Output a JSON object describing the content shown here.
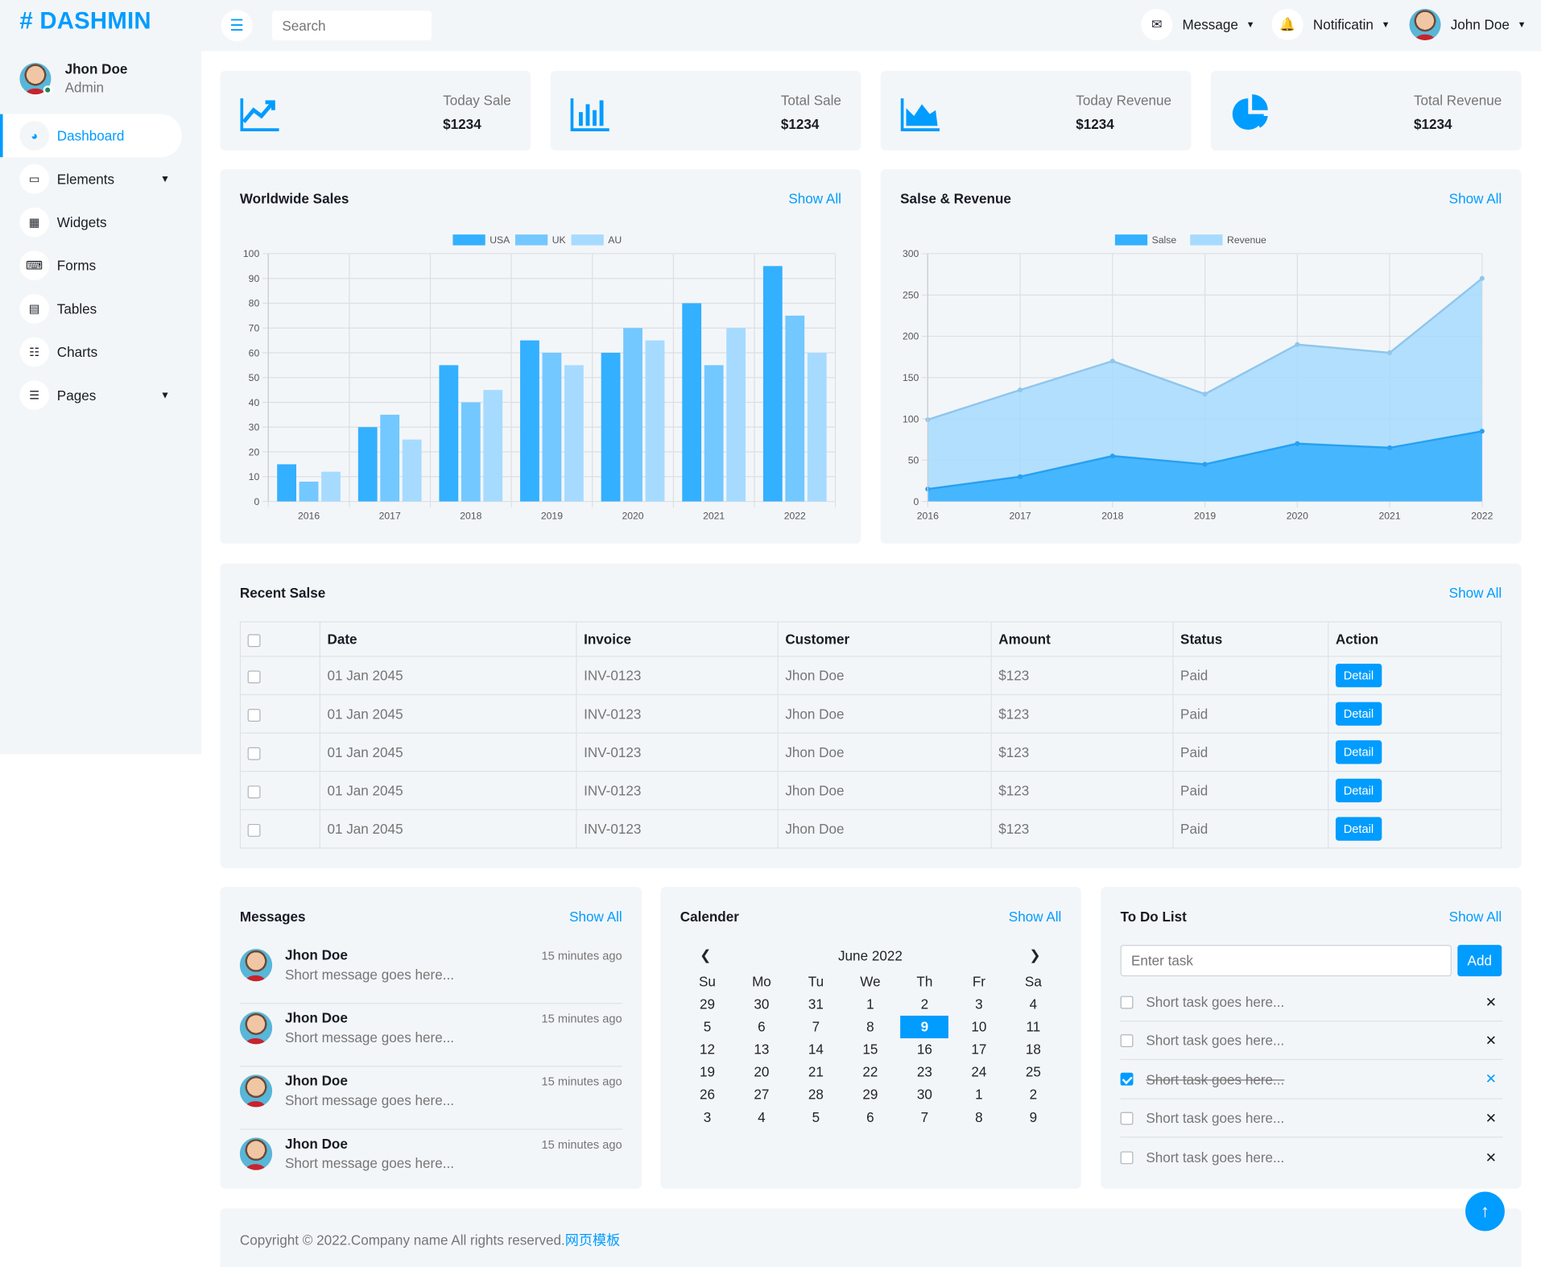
{
  "brand": "DASHMIN",
  "sidebar": {
    "user": {
      "name": "Jhon Doe",
      "role": "Admin"
    },
    "items": [
      {
        "label": "Dashboard",
        "icon": "gauge-icon",
        "active": true
      },
      {
        "label": "Elements",
        "icon": "laptop-icon",
        "has_dropdown": true
      },
      {
        "label": "Widgets",
        "icon": "grid-icon"
      },
      {
        "label": "Forms",
        "icon": "keyboard-icon"
      },
      {
        "label": "Tables",
        "icon": "table-icon"
      },
      {
        "label": "Charts",
        "icon": "chart-icon"
      },
      {
        "label": "Pages",
        "icon": "file-icon",
        "has_dropdown": true
      }
    ]
  },
  "topbar": {
    "search_placeholder": "Search",
    "message_label": "Message",
    "notification_label": "Notificatin",
    "user_label": "John Doe"
  },
  "stats": [
    {
      "label": "Today Sale",
      "value": "$1234",
      "icon": "trend-up-icon"
    },
    {
      "label": "Total Sale",
      "value": "$1234",
      "icon": "bar-chart-icon"
    },
    {
      "label": "Today Revenue",
      "value": "$1234",
      "icon": "area-chart-icon"
    },
    {
      "label": "Total Revenue",
      "value": "$1234",
      "icon": "pie-chart-icon"
    }
  ],
  "show_all": "Show All",
  "charts": {
    "worldwide_title": "Worldwide Sales",
    "revenue_title": "Salse & Revenue"
  },
  "chart_data": [
    {
      "type": "bar",
      "title": "Worldwide Sales",
      "categories": [
        "2016",
        "2017",
        "2018",
        "2019",
        "2020",
        "2021",
        "2022"
      ],
      "series": [
        {
          "name": "USA",
          "values": [
            15,
            30,
            55,
            65,
            60,
            80,
            95
          ],
          "color": "#33b0ff"
        },
        {
          "name": "UK",
          "values": [
            8,
            35,
            40,
            60,
            70,
            55,
            75
          ],
          "color": "#73c8ff"
        },
        {
          "name": "AU",
          "values": [
            12,
            25,
            45,
            55,
            65,
            70,
            60
          ],
          "color": "#a6dbff"
        }
      ],
      "ylim": [
        0,
        100
      ],
      "yticks": [
        0,
        10,
        20,
        30,
        40,
        50,
        60,
        70,
        80,
        90,
        100
      ],
      "legend": "top-center",
      "grid": true
    },
    {
      "type": "area",
      "title": "Salse & Revenue",
      "categories": [
        "2016",
        "2017",
        "2018",
        "2019",
        "2020",
        "2021",
        "2022"
      ],
      "series": [
        {
          "name": "Salse",
          "values": [
            15,
            30,
            55,
            45,
            70,
            65,
            85
          ],
          "color": "#33b0ff"
        },
        {
          "name": "Revenue",
          "values": [
            99,
            135,
            170,
            130,
            190,
            180,
            270
          ],
          "color": "#a6dbff"
        }
      ],
      "ylim": [
        0,
        300
      ],
      "yticks": [
        0,
        50,
        100,
        150,
        200,
        250,
        300
      ],
      "legend": "top-center",
      "grid": true
    }
  ],
  "recent_sales": {
    "title": "Recent Salse",
    "columns": [
      "Date",
      "Invoice",
      "Customer",
      "Amount",
      "Status",
      "Action"
    ],
    "rows": [
      {
        "date": "01 Jan 2045",
        "invoice": "INV-0123",
        "customer": "Jhon Doe",
        "amount": "$123",
        "status": "Paid",
        "action": "Detail"
      },
      {
        "date": "01 Jan 2045",
        "invoice": "INV-0123",
        "customer": "Jhon Doe",
        "amount": "$123",
        "status": "Paid",
        "action": "Detail"
      },
      {
        "date": "01 Jan 2045",
        "invoice": "INV-0123",
        "customer": "Jhon Doe",
        "amount": "$123",
        "status": "Paid",
        "action": "Detail"
      },
      {
        "date": "01 Jan 2045",
        "invoice": "INV-0123",
        "customer": "Jhon Doe",
        "amount": "$123",
        "status": "Paid",
        "action": "Detail"
      },
      {
        "date": "01 Jan 2045",
        "invoice": "INV-0123",
        "customer": "Jhon Doe",
        "amount": "$123",
        "status": "Paid",
        "action": "Detail"
      }
    ]
  },
  "messages": {
    "title": "Messages",
    "items": [
      {
        "name": "Jhon Doe",
        "text": "Short message goes here...",
        "time": "15 minutes ago"
      },
      {
        "name": "Jhon Doe",
        "text": "Short message goes here...",
        "time": "15 minutes ago"
      },
      {
        "name": "Jhon Doe",
        "text": "Short message goes here...",
        "time": "15 minutes ago"
      },
      {
        "name": "Jhon Doe",
        "text": "Short message goes here...",
        "time": "15 minutes ago"
      }
    ]
  },
  "calendar": {
    "title": "Calender",
    "month": "June 2022",
    "weekdays": [
      "Su",
      "Mo",
      "Tu",
      "We",
      "Th",
      "Fr",
      "Sa"
    ],
    "days": [
      "29",
      "30",
      "31",
      "1",
      "2",
      "3",
      "4",
      "5",
      "6",
      "7",
      "8",
      "9",
      "10",
      "11",
      "12",
      "13",
      "14",
      "15",
      "16",
      "17",
      "18",
      "19",
      "20",
      "21",
      "22",
      "23",
      "24",
      "25",
      "26",
      "27",
      "28",
      "29",
      "30",
      "1",
      "2",
      "3",
      "4",
      "5",
      "6",
      "7",
      "8",
      "9"
    ],
    "selected_day": "9"
  },
  "todo": {
    "title": "To Do List",
    "placeholder": "Enter task",
    "add_label": "Add",
    "items": [
      {
        "text": "Short task goes here...",
        "done": false
      },
      {
        "text": "Short task goes here...",
        "done": false
      },
      {
        "text": "Short task goes here...",
        "done": true
      },
      {
        "text": "Short task goes here...",
        "done": false
      },
      {
        "text": "Short task goes here...",
        "done": false
      }
    ]
  },
  "footer": {
    "text": "Copyright © 2022.Company name All rights reserved.",
    "link": "网页模板"
  }
}
